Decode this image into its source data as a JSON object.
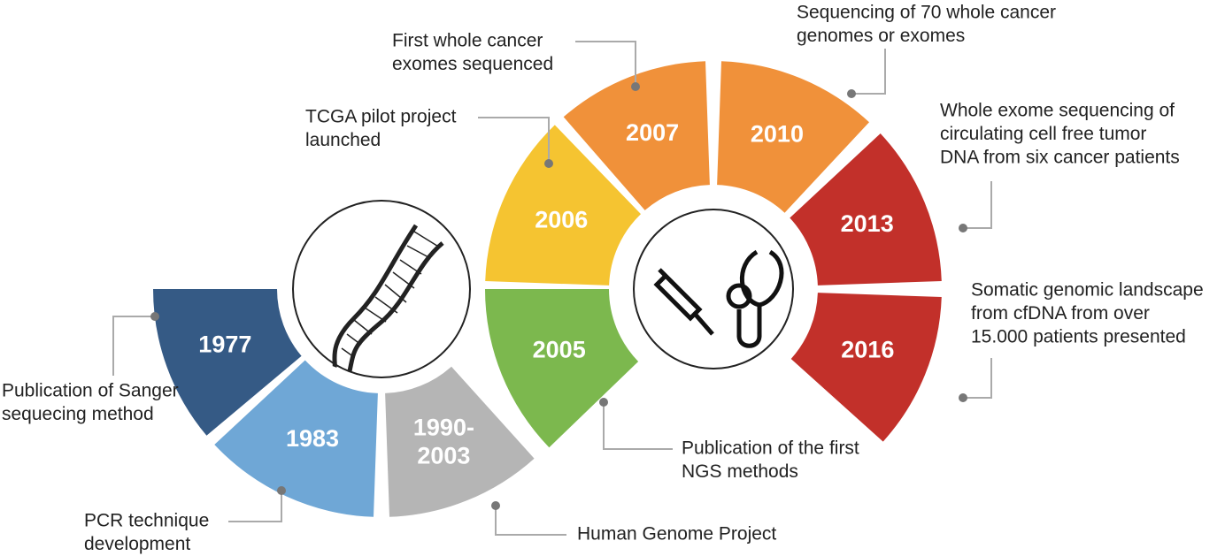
{
  "events": [
    {
      "year": [
        "1977"
      ],
      "description": [
        "Publication of Sanger",
        "sequecing method"
      ]
    },
    {
      "year": [
        "1983"
      ],
      "description": [
        "PCR technique",
        "development"
      ]
    },
    {
      "year": [
        "1990-",
        "2003"
      ],
      "description": [
        "Human Genome Project"
      ]
    },
    {
      "year": [
        "2005"
      ],
      "description": [
        "Publication of the first",
        "NGS methods"
      ]
    },
    {
      "year": [
        "2006"
      ],
      "description": [
        "TCGA pilot project",
        "launched"
      ]
    },
    {
      "year": [
        "2007"
      ],
      "description": [
        "First whole cancer",
        "exomes sequenced"
      ]
    },
    {
      "year": [
        "2010"
      ],
      "description": [
        "Sequencing of 70 whole cancer",
        "genomes or exomes"
      ]
    },
    {
      "year": [
        "2013"
      ],
      "description": [
        "Whole exome sequencing of",
        "circulating cell free tumor",
        "DNA from six cancer patients"
      ]
    },
    {
      "year": [
        "2016"
      ],
      "description": [
        "Somatic genomic landscape",
        "from cfDNA from over",
        "15.000 patients presented"
      ]
    }
  ]
}
